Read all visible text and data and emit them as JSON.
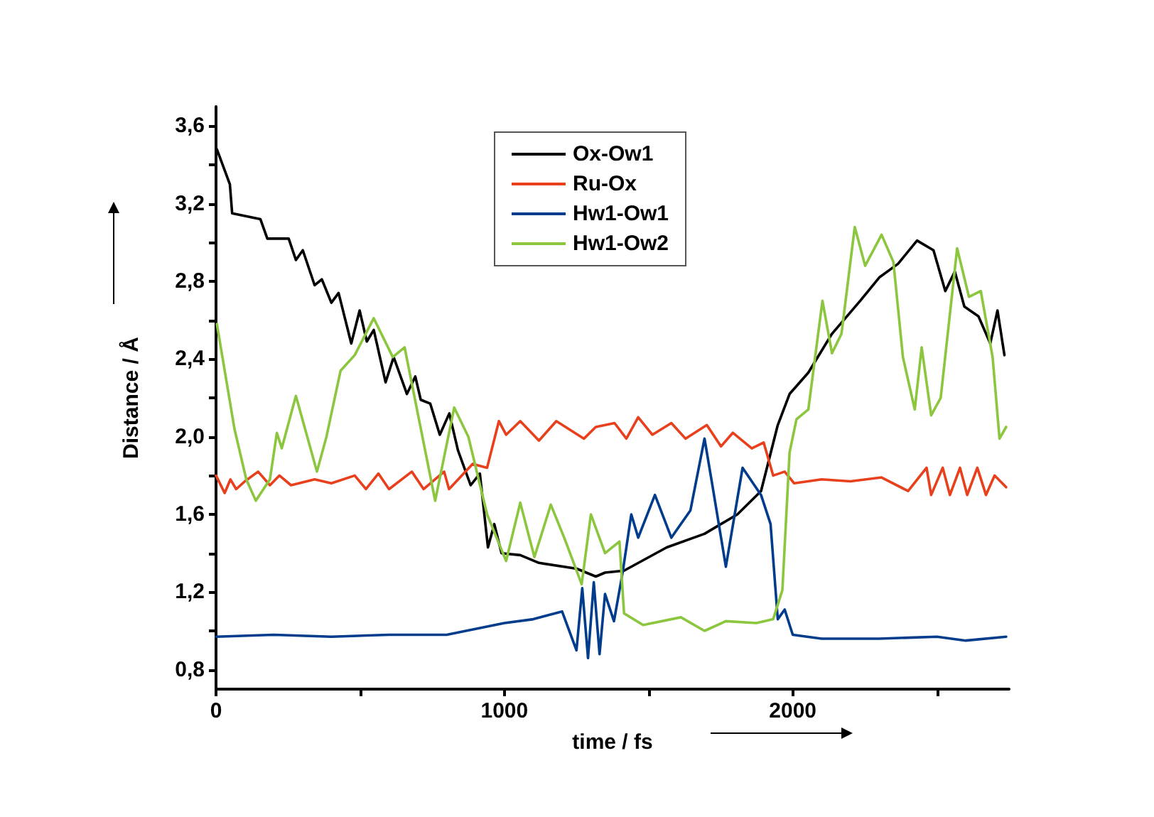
{
  "chart_data": {
    "type": "line",
    "xlabel": "time / fs",
    "ylabel": "Distance / Å",
    "xlim": [
      0,
      2750
    ],
    "ylim": [
      0.7,
      3.7
    ],
    "xticks": [
      0,
      {
        "value": 500,
        "label": null
      },
      1000,
      {
        "value": 1500,
        "label": null
      },
      2000,
      {
        "value": 2500,
        "label": null
      }
    ],
    "yticks": [
      {
        "value": 0.8,
        "label": "0,8"
      },
      {
        "value": 1.0,
        "label": null
      },
      {
        "value": 1.2,
        "label": "1,2"
      },
      {
        "value": 1.4,
        "label": null
      },
      {
        "value": 1.6,
        "label": "1,6"
      },
      {
        "value": 1.8,
        "label": null
      },
      {
        "value": 2.0,
        "label": "2,0"
      },
      {
        "value": 2.2,
        "label": null
      },
      {
        "value": 2.4,
        "label": "2,4"
      },
      {
        "value": 2.6,
        "label": null
      },
      {
        "value": 2.8,
        "label": "2,8"
      },
      {
        "value": 3.0,
        "label": null
      },
      {
        "value": 3.2,
        "label": "3,2"
      },
      {
        "value": 3.4,
        "label": null
      },
      {
        "value": 3.6,
        "label": "3,6"
      }
    ],
    "grid": false,
    "legend": "top",
    "marker": "none",
    "series": [
      {
        "name": "Ox-Ow1",
        "color": "#000000",
        "x": [
          3,
          48,
          56,
          154,
          178,
          252,
          277,
          301,
          342,
          367,
          400,
          425,
          469,
          498,
          523,
          547,
          588,
          616,
          662,
          691,
          710,
          743,
          776,
          809,
          839,
          883,
          915,
          943,
          965,
          990,
          1055,
          1120,
          1251,
          1317,
          1349,
          1415,
          1563,
          1694,
          1808,
          1890,
          1948,
          1989,
          2054,
          2136,
          2234,
          2300,
          2365,
          2431,
          2488,
          2529,
          2562,
          2595,
          2644,
          2685,
          2710,
          2734
        ],
        "values": [
          3.48,
          3.3,
          3.15,
          3.12,
          3.02,
          3.02,
          2.91,
          2.96,
          2.78,
          2.81,
          2.69,
          2.74,
          2.48,
          2.65,
          2.49,
          2.55,
          2.28,
          2.41,
          2.22,
          2.31,
          2.19,
          2.17,
          2.01,
          2.12,
          1.93,
          1.75,
          1.81,
          1.43,
          1.55,
          1.4,
          1.39,
          1.35,
          1.32,
          1.28,
          1.3,
          1.31,
          1.43,
          1.5,
          1.6,
          1.72,
          2.06,
          2.22,
          2.33,
          2.53,
          2.7,
          2.82,
          2.89,
          3.01,
          2.96,
          2.75,
          2.85,
          2.67,
          2.62,
          2.48,
          2.65,
          2.42
        ]
      },
      {
        "name": "Ru-Ox",
        "color": "#e8401c",
        "x": [
          0,
          30,
          50,
          70,
          100,
          146,
          187,
          220,
          260,
          342,
          400,
          481,
          520,
          563,
          600,
          679,
          720,
          791,
          808,
          890,
          940,
          981,
          1006,
          1055,
          1120,
          1180,
          1276,
          1317,
          1382,
          1423,
          1464,
          1513,
          1579,
          1628,
          1702,
          1751,
          1792,
          1858,
          1899,
          1932,
          1972,
          2005,
          2100,
          2200,
          2308,
          2400,
          2464,
          2480,
          2520,
          2545,
          2580,
          2605,
          2640,
          2670,
          2700,
          2740
        ],
        "values": [
          1.8,
          1.71,
          1.78,
          1.73,
          1.77,
          1.82,
          1.75,
          1.8,
          1.75,
          1.78,
          1.76,
          1.8,
          1.73,
          1.81,
          1.73,
          1.82,
          1.73,
          1.82,
          1.73,
          1.86,
          1.84,
          2.08,
          2.01,
          2.08,
          1.98,
          2.08,
          1.99,
          2.05,
          2.07,
          1.99,
          2.1,
          2.01,
          2.07,
          1.99,
          2.06,
          1.95,
          2.02,
          1.94,
          1.97,
          1.8,
          1.82,
          1.76,
          1.78,
          1.77,
          1.79,
          1.72,
          1.84,
          1.7,
          1.84,
          1.7,
          1.84,
          1.7,
          1.84,
          1.7,
          1.8,
          1.74
        ]
      },
      {
        "name": "Hw1-Ow1",
        "color": "#003c8c",
        "x": [
          0,
          200,
          400,
          600,
          800,
          1000,
          1100,
          1200,
          1250,
          1270,
          1290,
          1310,
          1330,
          1349,
          1380,
          1410,
          1440,
          1464,
          1522,
          1579,
          1645,
          1694,
          1719,
          1768,
          1826,
          1890,
          1923,
          1948,
          1972,
          2000,
          2100,
          2300,
          2500,
          2600,
          2740
        ],
        "values": [
          0.97,
          0.98,
          0.97,
          0.98,
          0.98,
          1.04,
          1.06,
          1.1,
          0.9,
          1.22,
          0.86,
          1.25,
          0.88,
          1.19,
          1.05,
          1.3,
          1.6,
          1.48,
          1.7,
          1.48,
          1.62,
          1.99,
          1.77,
          1.33,
          1.84,
          1.7,
          1.55,
          1.06,
          1.11,
          0.98,
          0.96,
          0.96,
          0.97,
          0.95,
          0.97
        ]
      },
      {
        "name": "Hw1-Ow2",
        "color": "#8cc63f",
        "x": [
          3,
          64,
          105,
          138,
          187,
          211,
          228,
          277,
          350,
          383,
          432,
          481,
          547,
          613,
          654,
          760,
          826,
          875,
          940,
          1006,
          1055,
          1104,
          1161,
          1210,
          1268,
          1300,
          1349,
          1399,
          1415,
          1481,
          1612,
          1694,
          1768,
          1874,
          1932,
          1964,
          1989,
          2013,
          2054,
          2103,
          2136,
          2169,
          2215,
          2251,
          2308,
          2349,
          2382,
          2423,
          2447,
          2480,
          2513,
          2570,
          2611,
          2652,
          2693,
          2717,
          2740
        ],
        "values": [
          2.58,
          2.04,
          1.78,
          1.67,
          1.78,
          2.02,
          1.94,
          2.21,
          1.82,
          2.0,
          2.34,
          2.42,
          2.61,
          2.41,
          2.46,
          1.67,
          2.15,
          2.0,
          1.6,
          1.36,
          1.66,
          1.38,
          1.65,
          1.47,
          1.24,
          1.6,
          1.4,
          1.46,
          1.09,
          1.03,
          1.07,
          1.0,
          1.05,
          1.04,
          1.06,
          1.21,
          1.92,
          2.09,
          2.14,
          2.7,
          2.43,
          2.53,
          3.08,
          2.88,
          3.04,
          2.9,
          2.41,
          2.14,
          2.46,
          2.11,
          2.2,
          2.97,
          2.72,
          2.75,
          2.41,
          1.99,
          2.05
        ]
      }
    ]
  }
}
